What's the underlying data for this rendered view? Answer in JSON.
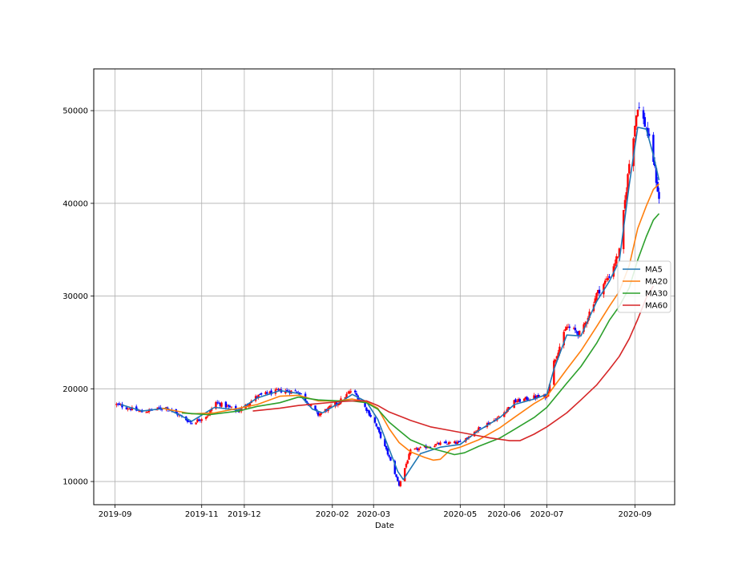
{
  "chart_data": {
    "type": "candlestick",
    "title": "",
    "xlabel": "Date",
    "ylabel": "",
    "grid": true,
    "legend_placement": "center-right",
    "x_ticks": [
      "2019-09",
      "2019-11",
      "2019-12",
      "2020-02",
      "2020-03",
      "2020-05",
      "2020-06",
      "2020-07",
      "2020-09"
    ],
    "y_ticks": [
      10000,
      20000,
      30000,
      40000,
      50000
    ],
    "ylim": [
      7500,
      54500
    ],
    "xlim": [
      "2019-08-17",
      "2020-09-29"
    ],
    "colors": {
      "up_candle": "#ff0000",
      "down_candle": "#0000ff",
      "grid": "#b0b0b0"
    },
    "price_path": [
      {
        "date": "2019-09-02",
        "close": 18300
      },
      {
        "date": "2019-09-20",
        "close": 17500
      },
      {
        "date": "2019-10-07",
        "close": 18000
      },
      {
        "date": "2019-10-25",
        "close": 16300
      },
      {
        "date": "2019-11-06",
        "close": 17200
      },
      {
        "date": "2019-11-10",
        "close": 18600
      },
      {
        "date": "2019-11-27",
        "close": 17600
      },
      {
        "date": "2019-12-10",
        "close": 19200
      },
      {
        "date": "2019-12-26",
        "close": 19800
      },
      {
        "date": "2020-01-08",
        "close": 19700
      },
      {
        "date": "2020-01-22",
        "close": 17200
      },
      {
        "date": "2020-02-05",
        "close": 18500
      },
      {
        "date": "2020-02-15",
        "close": 19900
      },
      {
        "date": "2020-02-25",
        "close": 17800
      },
      {
        "date": "2020-03-02",
        "close": 16300
      },
      {
        "date": "2020-03-12",
        "close": 12600
      },
      {
        "date": "2020-03-19",
        "close": 9600
      },
      {
        "date": "2020-03-27",
        "close": 13300
      },
      {
        "date": "2020-04-17",
        "close": 14100
      },
      {
        "date": "2020-05-01",
        "close": 14200
      },
      {
        "date": "2020-05-14",
        "close": 15700
      },
      {
        "date": "2020-05-29",
        "close": 17000
      },
      {
        "date": "2020-06-08",
        "close": 18600
      },
      {
        "date": "2020-06-22",
        "close": 19100
      },
      {
        "date": "2020-07-01",
        "close": 19200
      },
      {
        "date": "2020-07-06",
        "close": 22900
      },
      {
        "date": "2020-07-15",
        "close": 26700
      },
      {
        "date": "2020-07-25",
        "close": 25900
      },
      {
        "date": "2020-08-05",
        "close": 30200
      },
      {
        "date": "2020-08-14",
        "close": 32200
      },
      {
        "date": "2020-08-21",
        "close": 34800
      },
      {
        "date": "2020-08-28",
        "close": 44300
      },
      {
        "date": "2020-09-03",
        "close": 50600
      },
      {
        "date": "2020-09-09",
        "close": 48100
      },
      {
        "date": "2020-09-14",
        "close": 44700
      },
      {
        "date": "2020-09-19",
        "close": 39300
      }
    ],
    "series": [
      {
        "name": "MA5",
        "color": "#1f77b4",
        "points": [
          [
            "2019-09-05",
            18300
          ],
          [
            "2019-09-20",
            17600
          ],
          [
            "2019-10-07",
            17900
          ],
          [
            "2019-10-25",
            16500
          ],
          [
            "2019-11-10",
            18000
          ],
          [
            "2019-11-27",
            17700
          ],
          [
            "2019-12-10",
            19000
          ],
          [
            "2019-12-26",
            19800
          ],
          [
            "2020-01-08",
            19500
          ],
          [
            "2020-01-18",
            17800
          ],
          [
            "2020-01-25",
            17400
          ],
          [
            "2020-02-05",
            18400
          ],
          [
            "2020-02-15",
            19400
          ],
          [
            "2020-02-25",
            18600
          ],
          [
            "2020-03-04",
            16700
          ],
          [
            "2020-03-12",
            13500
          ],
          [
            "2020-03-18",
            11100
          ],
          [
            "2020-03-22",
            10200
          ],
          [
            "2020-03-27",
            11400
          ],
          [
            "2020-04-03",
            13000
          ],
          [
            "2020-04-17",
            13700
          ],
          [
            "2020-05-01",
            14000
          ],
          [
            "2020-05-14",
            15500
          ],
          [
            "2020-05-29",
            16900
          ],
          [
            "2020-06-08",
            18300
          ],
          [
            "2020-06-22",
            18900
          ],
          [
            "2020-07-01",
            19400
          ],
          [
            "2020-07-06",
            22100
          ],
          [
            "2020-07-15",
            25800
          ],
          [
            "2020-07-25",
            25700
          ],
          [
            "2020-08-05",
            29400
          ],
          [
            "2020-08-14",
            31600
          ],
          [
            "2020-08-21",
            33800
          ],
          [
            "2020-08-28",
            42000
          ],
          [
            "2020-09-03",
            48200
          ],
          [
            "2020-09-09",
            48000
          ],
          [
            "2020-09-14",
            45200
          ],
          [
            "2020-09-18",
            42500
          ]
        ]
      },
      {
        "name": "MA20",
        "color": "#ff7f0e",
        "points": [
          [
            "2019-10-04",
            17900
          ],
          [
            "2019-10-25",
            17300
          ],
          [
            "2019-11-10",
            17400
          ],
          [
            "2019-11-27",
            17900
          ],
          [
            "2019-12-10",
            18300
          ],
          [
            "2019-12-26",
            19200
          ],
          [
            "2020-01-08",
            19300
          ],
          [
            "2020-01-22",
            18700
          ],
          [
            "2020-02-05",
            18700
          ],
          [
            "2020-02-15",
            18900
          ],
          [
            "2020-02-25",
            18600
          ],
          [
            "2020-03-04",
            17900
          ],
          [
            "2020-03-12",
            15700
          ],
          [
            "2020-03-19",
            14200
          ],
          [
            "2020-03-27",
            13200
          ],
          [
            "2020-04-06",
            12600
          ],
          [
            "2020-04-12",
            12300
          ],
          [
            "2020-04-17",
            12400
          ],
          [
            "2020-04-24",
            13400
          ],
          [
            "2020-05-01",
            13700
          ],
          [
            "2020-05-14",
            14500
          ],
          [
            "2020-05-29",
            15800
          ],
          [
            "2020-06-08",
            16900
          ],
          [
            "2020-06-22",
            18400
          ],
          [
            "2020-07-01",
            19200
          ],
          [
            "2020-07-15",
            22100
          ],
          [
            "2020-07-25",
            24100
          ],
          [
            "2020-08-05",
            26700
          ],
          [
            "2020-08-14",
            28900
          ],
          [
            "2020-08-21",
            30500
          ],
          [
            "2020-08-28",
            33300
          ],
          [
            "2020-09-03",
            37300
          ],
          [
            "2020-09-09",
            39700
          ],
          [
            "2020-09-14",
            41500
          ],
          [
            "2020-09-18",
            42100
          ]
        ]
      },
      {
        "name": "MA30",
        "color": "#2ca02c",
        "points": [
          [
            "2019-10-18",
            17400
          ],
          [
            "2019-11-06",
            17200
          ],
          [
            "2019-11-27",
            17600
          ],
          [
            "2019-12-10",
            18100
          ],
          [
            "2019-12-26",
            18500
          ],
          [
            "2020-01-08",
            19100
          ],
          [
            "2020-01-22",
            18800
          ],
          [
            "2020-02-05",
            18700
          ],
          [
            "2020-02-15",
            18700
          ],
          [
            "2020-02-25",
            18500
          ],
          [
            "2020-03-04",
            17800
          ],
          [
            "2020-03-12",
            16400
          ],
          [
            "2020-03-19",
            15500
          ],
          [
            "2020-03-27",
            14500
          ],
          [
            "2020-04-10",
            13600
          ],
          [
            "2020-04-20",
            13200
          ],
          [
            "2020-04-27",
            12900
          ],
          [
            "2020-05-04",
            13100
          ],
          [
            "2020-05-14",
            13800
          ],
          [
            "2020-05-29",
            14700
          ],
          [
            "2020-06-08",
            15600
          ],
          [
            "2020-06-22",
            16900
          ],
          [
            "2020-07-01",
            18000
          ],
          [
            "2020-07-15",
            20600
          ],
          [
            "2020-07-25",
            22400
          ],
          [
            "2020-08-05",
            24900
          ],
          [
            "2020-08-14",
            27400
          ],
          [
            "2020-08-21",
            28900
          ],
          [
            "2020-08-28",
            30900
          ],
          [
            "2020-09-03",
            33900
          ],
          [
            "2020-09-09",
            36400
          ],
          [
            "2020-09-14",
            38200
          ],
          [
            "2020-09-18",
            38900
          ]
        ]
      },
      {
        "name": "MA60",
        "color": "#d62728",
        "points": [
          [
            "2019-12-07",
            17600
          ],
          [
            "2019-12-26",
            17900
          ],
          [
            "2020-01-08",
            18200
          ],
          [
            "2020-01-22",
            18400
          ],
          [
            "2020-02-05",
            18600
          ],
          [
            "2020-02-15",
            18700
          ],
          [
            "2020-02-25",
            18700
          ],
          [
            "2020-03-04",
            18200
          ],
          [
            "2020-03-12",
            17500
          ],
          [
            "2020-03-27",
            16600
          ],
          [
            "2020-04-10",
            15900
          ],
          [
            "2020-04-24",
            15500
          ],
          [
            "2020-05-08",
            15100
          ],
          [
            "2020-05-22",
            14700
          ],
          [
            "2020-06-05",
            14400
          ],
          [
            "2020-06-12",
            14400
          ],
          [
            "2020-06-22",
            15100
          ],
          [
            "2020-07-01",
            15900
          ],
          [
            "2020-07-15",
            17400
          ],
          [
            "2020-07-25",
            18800
          ],
          [
            "2020-08-05",
            20400
          ],
          [
            "2020-08-14",
            22100
          ],
          [
            "2020-08-21",
            23500
          ],
          [
            "2020-08-28",
            25400
          ],
          [
            "2020-09-03",
            27500
          ],
          [
            "2020-09-09",
            29800
          ],
          [
            "2020-09-14",
            31100
          ]
        ]
      }
    ]
  }
}
